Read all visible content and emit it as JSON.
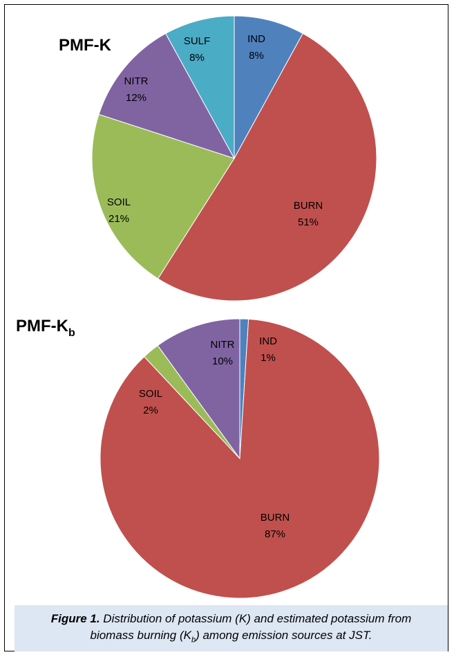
{
  "colors": {
    "IND": "#4f81bd",
    "BURN": "#c0504d",
    "SOIL": "#9bbb59",
    "NITR": "#8064a2",
    "SULF": "#4bacc6"
  },
  "chart_data": [
    {
      "type": "pie",
      "title": "PMF-K",
      "slices": [
        {
          "label": "IND",
          "value": 8,
          "pct": "8%"
        },
        {
          "label": "BURN",
          "value": 51,
          "pct": "51%"
        },
        {
          "label": "SOIL",
          "value": 21,
          "pct": "21%"
        },
        {
          "label": "NITR",
          "value": 12,
          "pct": "12%"
        },
        {
          "label": "SULF",
          "value": 8,
          "pct": "8%"
        }
      ]
    },
    {
      "type": "pie",
      "title": "PMF-K",
      "title_sub": "b",
      "slices": [
        {
          "label": "IND",
          "value": 1,
          "pct": "1%"
        },
        {
          "label": "BURN",
          "value": 87,
          "pct": "87%"
        },
        {
          "label": "SOIL",
          "value": 2,
          "pct": "2%"
        },
        {
          "label": "NITR",
          "value": 10,
          "pct": "10%"
        }
      ]
    }
  ],
  "caption": {
    "label": "Figure 1.",
    "text_1": " Distribution of potassium (K) and estimated potassium from biomass burning (K",
    "sub": "b",
    "text_2": ") among emission sources at JST."
  }
}
